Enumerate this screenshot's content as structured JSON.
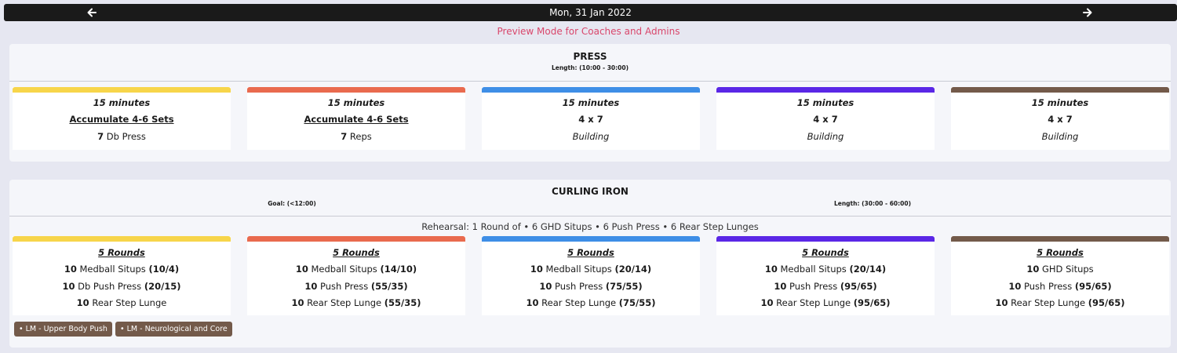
{
  "header": {
    "date": "Mon, 31 Jan 2022"
  },
  "preview_text": "Preview Mode for Coaches and Admins",
  "colors": {
    "track_1": "#f7d54a",
    "track_2": "#e96a4e",
    "track_3": "#3e8ee6",
    "track_4": "#5a27e6",
    "track_5": "#735a4a",
    "preview": "#d9466b",
    "tag_bg": "#735a4a"
  },
  "press": {
    "title": "PRESS",
    "length": "Length: (10:00 - 30:00)",
    "cards": [
      {
        "l1": "15 minutes",
        "l2": "Accumulate 4-6 Sets",
        "l3_num": "7",
        "l3_text": " Db Press"
      },
      {
        "l1": "15 minutes",
        "l2": "Accumulate 4-6 Sets",
        "l3_num": "7",
        "l3_text": " Reps"
      },
      {
        "l1": "15 minutes",
        "l2": "4 x 7",
        "l3": "Building"
      },
      {
        "l1": "15 minutes",
        "l2": "4 x 7",
        "l3": "Building"
      },
      {
        "l1": "15 minutes",
        "l2": "4 x 7",
        "l3": "Building"
      }
    ]
  },
  "curling": {
    "title": "CURLING IRON",
    "goal": "Goal: (<12:00)",
    "length": "Length: (30:00 - 60:00)",
    "rehearsal": "Rehearsal: 1 Round of • 6 GHD Situps • 6 Push Press • 6 Rear Step Lunges",
    "cards": [
      {
        "rounds": "5 Rounds",
        "rows": [
          {
            "num": "10",
            "name": " Medball Situps ",
            "load": "(10/4)"
          },
          {
            "num": "10",
            "name": " Db Push Press ",
            "load": "(20/15)"
          },
          {
            "num": "10",
            "name": " Rear Step Lunge",
            "load": ""
          }
        ]
      },
      {
        "rounds": "5 Rounds",
        "rows": [
          {
            "num": "10",
            "name": " Medball Situps ",
            "load": "(14/10)"
          },
          {
            "num": "10",
            "name": " Push Press ",
            "load": "(55/35)"
          },
          {
            "num": "10",
            "name": " Rear Step Lunge ",
            "load": "(55/35)"
          }
        ]
      },
      {
        "rounds": "5 Rounds",
        "rows": [
          {
            "num": "10",
            "name": " Medball Situps ",
            "load": "(20/14)"
          },
          {
            "num": "10",
            "name": " Push Press ",
            "load": "(75/55)"
          },
          {
            "num": "10",
            "name": " Rear Step Lunge ",
            "load": "(75/55)"
          }
        ]
      },
      {
        "rounds": "5 Rounds",
        "rows": [
          {
            "num": "10",
            "name": " Medball Situps ",
            "load": "(20/14)"
          },
          {
            "num": "10",
            "name": " Push Press ",
            "load": "(95/65)"
          },
          {
            "num": "10",
            "name": " Rear Step Lunge ",
            "load": "(95/65)"
          }
        ]
      },
      {
        "rounds": "5 Rounds",
        "rows": [
          {
            "num": "10",
            "name": " GHD Situps",
            "load": ""
          },
          {
            "num": "10",
            "name": " Push Press ",
            "load": "(95/65)"
          },
          {
            "num": "10",
            "name": " Rear Step Lunge ",
            "load": "(95/65)"
          }
        ]
      }
    ],
    "tags": [
      "• LM - Upper Body Push",
      "• LM - Neurological and Core"
    ]
  }
}
